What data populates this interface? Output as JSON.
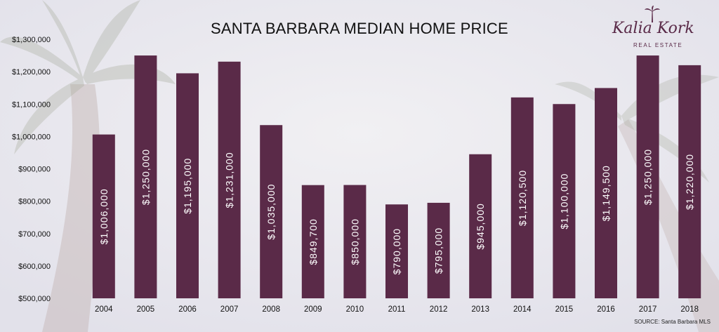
{
  "brand": {
    "name": "Kalia Kork",
    "subtitle": "REAL ESTATE"
  },
  "source": "SOURCE: Santa Barbara MLS",
  "colors": {
    "bar": "#5a2a48",
    "bar_label": "#ffffff",
    "text": "#111111"
  },
  "chart_data": {
    "type": "bar",
    "title": "SANTA BARBARA MEDIAN HOME PRICE",
    "xlabel": "",
    "ylabel": "",
    "ylim": [
      500000,
      1300000
    ],
    "yticks": [
      500000,
      600000,
      700000,
      800000,
      900000,
      1000000,
      1100000,
      1200000,
      1300000
    ],
    "ytick_labels": [
      "$500,000",
      "$600,000",
      "$700,000",
      "$800,000",
      "$900,000",
      "$1,000,000",
      "$1,100,000",
      "$1,200,000",
      "$1,300,000"
    ],
    "categories": [
      "2004",
      "2005",
      "2006",
      "2007",
      "2008",
      "2009",
      "2010",
      "2011",
      "2012",
      "2013",
      "2014",
      "2015",
      "2016",
      "2017",
      "2018"
    ],
    "values": [
      1006000,
      1250000,
      1195000,
      1231000,
      1035000,
      849700,
      850000,
      790000,
      795000,
      945000,
      1120500,
      1100000,
      1149500,
      1250000,
      1220000
    ],
    "data_labels": [
      "$1,006,000",
      "$1,250,000",
      "$1,195,000",
      "$1,231,000",
      "$1,035,000",
      "$849,700",
      "$850,000",
      "$790,000",
      "$795,000",
      "$945,000",
      "$1,120,500",
      "$1,100,000",
      "$1,149,500",
      "$1,250,000",
      "$1,220,000"
    ],
    "grid": false,
    "legend": "none"
  }
}
